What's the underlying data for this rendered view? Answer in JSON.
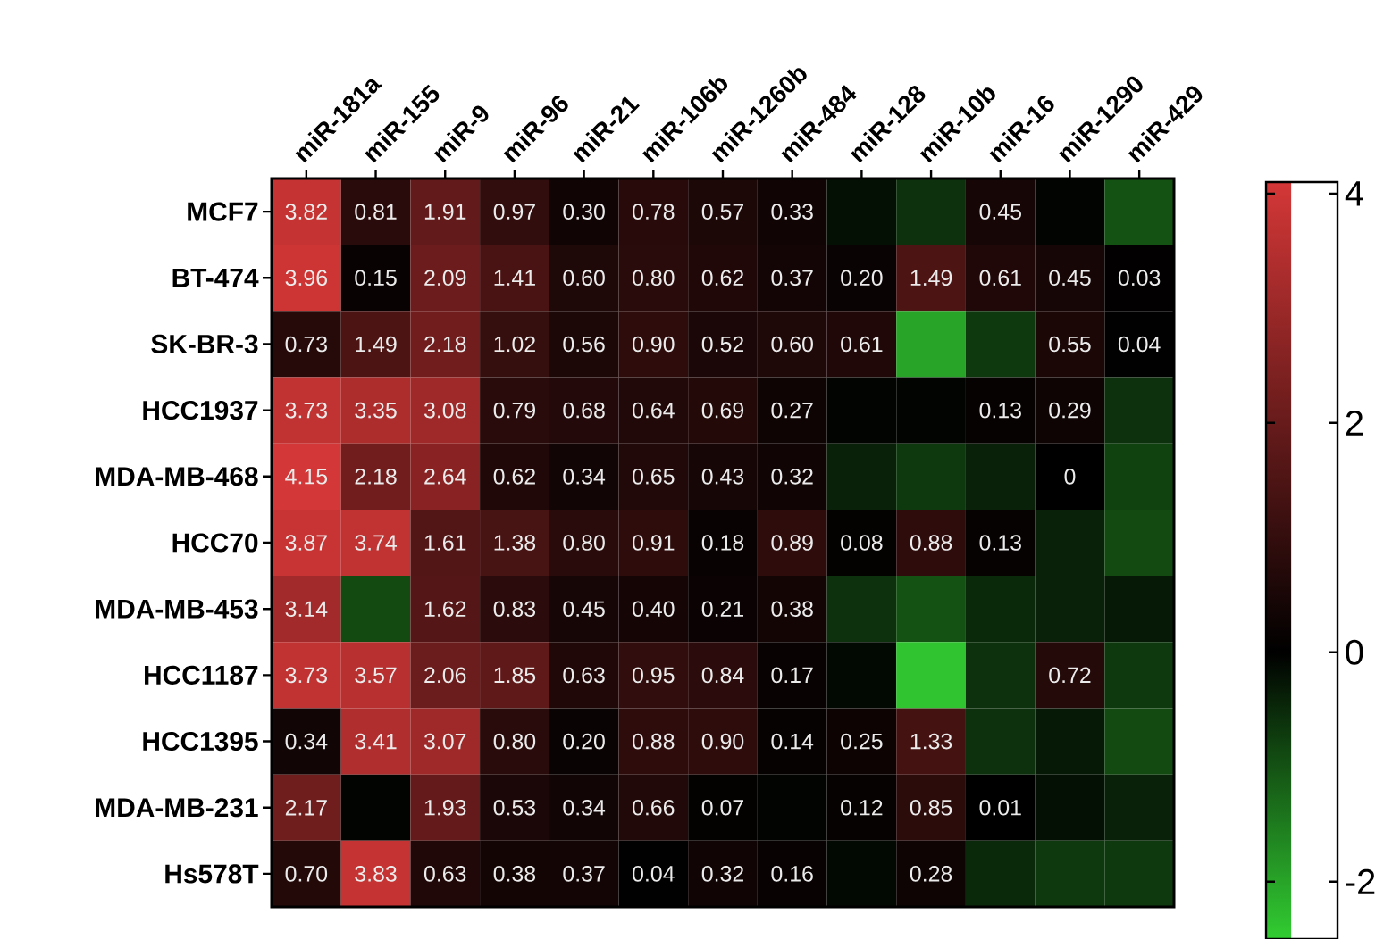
{
  "chart_data": {
    "type": "heatmap",
    "categories": [
      "miR-181a",
      "miR-155",
      "miR-9",
      "miR-96",
      "miR-21",
      "miR-106b",
      "miR-1260b",
      "miR-484",
      "miR-128",
      "miR-10b",
      "miR-16",
      "miR-1290",
      "miR-429"
    ],
    "y_categories": [
      "MCF7",
      "BT-474",
      "SK-BR-3",
      "HCC1937",
      "MDA-MB-468",
      "HCC70",
      "MDA-MB-453",
      "HCC1187",
      "HCC1395",
      "MDA-MB-231",
      "Hs578T"
    ],
    "cells": [
      [
        3.82,
        0.81,
        1.91,
        0.97,
        0.3,
        0.78,
        0.57,
        0.33,
        -0.2,
        -0.6,
        0.45,
        -0.05,
        -1.0
      ],
      [
        3.96,
        0.15,
        2.09,
        1.41,
        0.6,
        0.8,
        0.62,
        0.37,
        0.2,
        1.49,
        0.61,
        0.45,
        0.03
      ],
      [
        0.73,
        1.49,
        2.18,
        1.02,
        0.56,
        0.9,
        0.52,
        0.6,
        0.61,
        -2.0,
        -0.7,
        0.55,
        0.04
      ],
      [
        3.73,
        3.35,
        3.08,
        0.79,
        0.68,
        0.64,
        0.69,
        0.27,
        -0.05,
        -0.05,
        0.13,
        0.29,
        -0.6
      ],
      [
        4.15,
        2.18,
        2.64,
        0.62,
        0.34,
        0.65,
        0.43,
        0.32,
        -0.4,
        -0.7,
        -0.4,
        0,
        -0.8
      ],
      [
        3.87,
        3.74,
        1.61,
        1.38,
        0.8,
        0.91,
        0.18,
        0.89,
        0.08,
        0.88,
        0.13,
        -0.4,
        -0.9
      ],
      [
        3.14,
        -0.9,
        1.62,
        0.83,
        0.45,
        0.4,
        0.21,
        0.38,
        -0.6,
        -1.0,
        -0.5,
        -0.4,
        -0.3
      ],
      [
        3.73,
        3.57,
        2.06,
        1.85,
        0.63,
        0.95,
        0.84,
        0.17,
        -0.1,
        -2.4,
        -0.6,
        0.72,
        -0.7
      ],
      [
        0.34,
        3.41,
        3.07,
        0.8,
        0.2,
        0.88,
        0.9,
        0.14,
        0.25,
        1.33,
        -0.6,
        -0.3,
        -0.9
      ],
      [
        2.17,
        -0.05,
        1.93,
        0.53,
        0.34,
        0.66,
        0.07,
        -0.05,
        0.12,
        0.85,
        0.01,
        -0.2,
        -0.4
      ],
      [
        0.7,
        3.83,
        0.63,
        0.38,
        0.37,
        0.04,
        0.32,
        0.16,
        -0.1,
        0.28,
        -0.5,
        -0.7,
        -0.7
      ]
    ],
    "cell_labels": [
      [
        "3.82",
        "0.81",
        "1.91",
        "0.97",
        "0.30",
        "0.78",
        "0.57",
        "0.33",
        null,
        null,
        "0.45",
        null,
        null
      ],
      [
        "3.96",
        "0.15",
        "2.09",
        "1.41",
        "0.60",
        "0.80",
        "0.62",
        "0.37",
        "0.20",
        "1.49",
        "0.61",
        "0.45",
        "0.03"
      ],
      [
        "0.73",
        "1.49",
        "2.18",
        "1.02",
        "0.56",
        "0.90",
        "0.52",
        "0.60",
        "0.61",
        null,
        null,
        "0.55",
        "0.04"
      ],
      [
        "3.73",
        "3.35",
        "3.08",
        "0.79",
        "0.68",
        "0.64",
        "0.69",
        "0.27",
        null,
        null,
        "0.13",
        "0.29",
        null
      ],
      [
        "4.15",
        "2.18",
        "2.64",
        "0.62",
        "0.34",
        "0.65",
        "0.43",
        "0.32",
        null,
        null,
        null,
        "0",
        null
      ],
      [
        "3.87",
        "3.74",
        "1.61",
        "1.38",
        "0.80",
        "0.91",
        "0.18",
        "0.89",
        "0.08",
        "0.88",
        "0.13",
        null,
        null
      ],
      [
        "3.14",
        null,
        "1.62",
        "0.83",
        "0.45",
        "0.40",
        "0.21",
        "0.38",
        null,
        null,
        null,
        null,
        null
      ],
      [
        "3.73",
        "3.57",
        "2.06",
        "1.85",
        "0.63",
        "0.95",
        "0.84",
        "0.17",
        null,
        null,
        null,
        "0.72",
        null
      ],
      [
        "0.34",
        "3.41",
        "3.07",
        "0.80",
        "0.20",
        "0.88",
        "0.90",
        "0.14",
        "0.25",
        "1.33",
        null,
        null,
        null
      ],
      [
        "2.17",
        null,
        "1.93",
        "0.53",
        "0.34",
        "0.66",
        "0.07",
        null,
        "0.12",
        "0.85",
        "0.01",
        null,
        null
      ],
      [
        "0.70",
        "3.83",
        "0.63",
        "0.38",
        "0.37",
        "0.04",
        "0.32",
        "0.16",
        null,
        "0.28",
        null,
        null,
        null
      ]
    ],
    "clim": [
      -2.5,
      4.1
    ],
    "cticks": [
      -2,
      0,
      2,
      4
    ]
  }
}
